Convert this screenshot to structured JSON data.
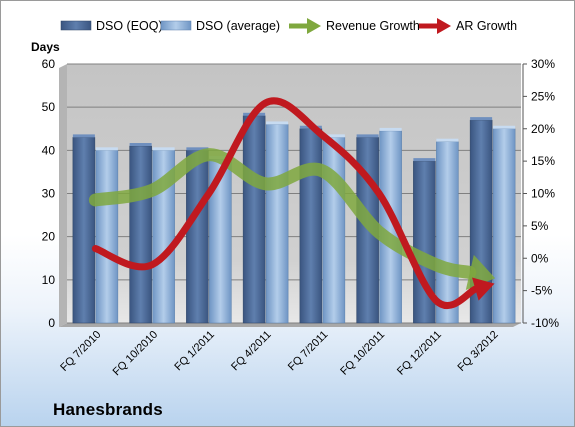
{
  "chart_data": {
    "type": "bar",
    "title": "",
    "company": "Hanesbrands",
    "ylabel": "Days",
    "ylim": [
      0,
      60
    ],
    "y_ticks": [
      0,
      10,
      20,
      30,
      40,
      50,
      60
    ],
    "y2lim": [
      -10,
      30
    ],
    "y2_ticks": [
      "-10%",
      "-5%",
      "0%",
      "5%",
      "10%",
      "15%",
      "20%",
      "25%",
      "30%"
    ],
    "categories": [
      "FQ 7/2010",
      "FQ 10/2010",
      "FQ 1/2011",
      "FQ 4/2011",
      "FQ 7/2011",
      "FQ 10/2011",
      "FQ 12/2011",
      "FQ 3/2012"
    ],
    "series": [
      {
        "name": "DSO (EOQ)",
        "type": "bar",
        "axis": "left",
        "color": "#4a6896",
        "values": [
          43,
          41,
          40,
          48,
          45,
          43,
          37.5,
          47
        ]
      },
      {
        "name": "DSO (average)",
        "type": "bar",
        "axis": "left",
        "color": "#8fb3dc",
        "values": [
          40,
          40,
          38,
          46,
          43,
          44.5,
          42,
          45
        ]
      },
      {
        "name": "Revenue Growth",
        "type": "line",
        "axis": "right",
        "color": "#7fa83e",
        "values": [
          9,
          10.5,
          16,
          11.5,
          13.5,
          4,
          -1,
          -3
        ]
      },
      {
        "name": "AR Growth",
        "type": "line",
        "axis": "right",
        "color": "#c0191f",
        "values": [
          1.5,
          -1,
          10,
          24,
          19,
          10,
          -6.5,
          -4
        ]
      }
    ],
    "grid": true,
    "legend_position": "top"
  }
}
